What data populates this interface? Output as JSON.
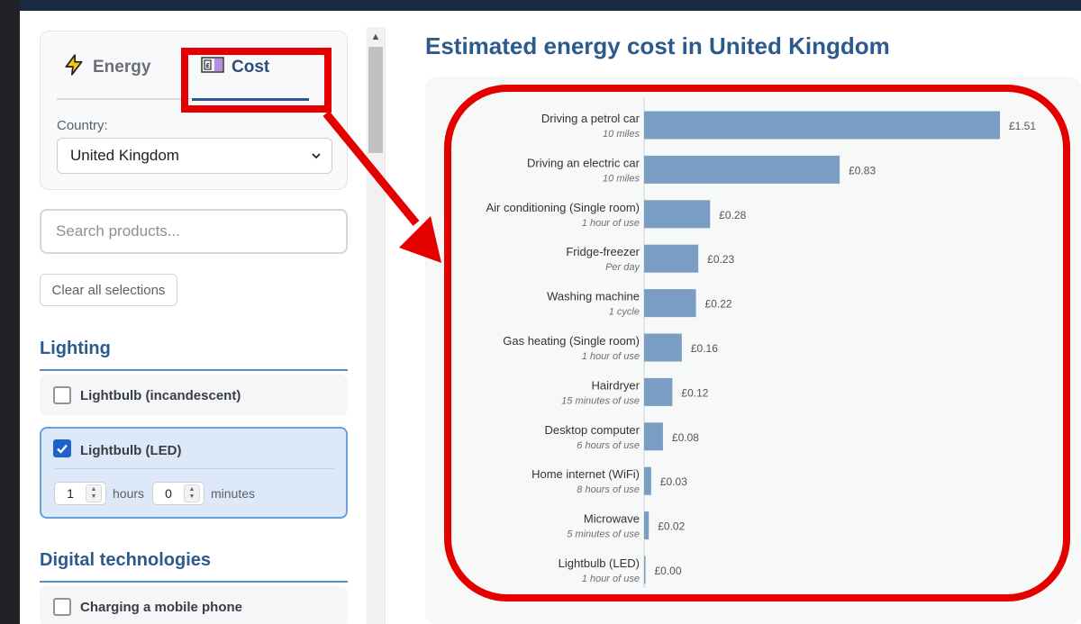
{
  "sidebar": {
    "tabs": [
      {
        "label": "Energy",
        "icon": "lightning-icon"
      },
      {
        "label": "Cost",
        "icon": "banknote-icon"
      }
    ],
    "active_tab": "Cost",
    "country_label": "Country:",
    "country_value": "United Kingdom",
    "search_placeholder": "Search products...",
    "clear_label": "Clear all selections",
    "sections": [
      {
        "title": "Lighting",
        "items": [
          {
            "label": "Lightbulb (incandescent)",
            "checked": false
          },
          {
            "label": "Lightbulb (LED)",
            "checked": true,
            "hours": "1",
            "hours_label": "hours",
            "minutes": "0",
            "minutes_label": "minutes"
          }
        ]
      },
      {
        "title": "Digital technologies",
        "items": [
          {
            "label": "Charging a mobile phone",
            "checked": false
          }
        ]
      }
    ]
  },
  "main": {
    "title": "Estimated energy cost in United Kingdom"
  },
  "colors": {
    "accent": "#2d5a8c",
    "bar": "#7a9dc4",
    "highlight": "#e50000"
  },
  "chart_data": {
    "type": "bar",
    "orientation": "horizontal",
    "title": "",
    "xlabel": "",
    "ylabel": "",
    "categories": [
      "Driving a petrol car",
      "Driving  an electric car",
      "Air conditioning (Single room)",
      "Fridge-freezer",
      "Washing machine",
      "Gas heating (Single room)",
      "Hairdryer",
      "Desktop computer",
      "Home internet (WiFi)",
      "Microwave",
      "Lightbulb (LED)"
    ],
    "sublabels": [
      "10 miles",
      "10 miles",
      "1 hour of use",
      "Per day",
      "1 cycle",
      "1 hour of use",
      "15 minutes of use",
      "6 hours of use",
      "8 hours of use",
      "5 minutes of use",
      "1 hour of use"
    ],
    "values": [
      1.51,
      0.83,
      0.28,
      0.23,
      0.22,
      0.16,
      0.12,
      0.08,
      0.03,
      0.02,
      0.0
    ],
    "value_labels": [
      "£1.51",
      "£0.83",
      "£0.28",
      "£0.23",
      "£0.22",
      "£0.16",
      "£0.12",
      "£0.08",
      "£0.03",
      "£0.02",
      "£0.00"
    ],
    "xlim": [
      0,
      1.51
    ],
    "grid": false,
    "legend": "none"
  }
}
